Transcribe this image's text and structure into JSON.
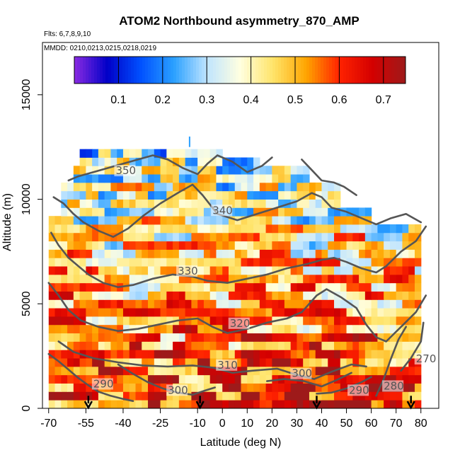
{
  "chart_data": {
    "type": "heatmap",
    "title": "ATOM2 Northbound asymmetry_870_AMP",
    "flights_note": "Flts: 6,7,8,9,10",
    "dates_note": "MMDD: 0210,0213,0215,0218,0219",
    "xlabel": "Latitude (deg N)",
    "ylabel": "Altitude (m)",
    "xlim": [
      -70,
      85
    ],
    "ylim": [
      0,
      17500
    ],
    "x_ticks": [
      -70,
      -55,
      -40,
      -25,
      -10,
      0,
      10,
      20,
      30,
      40,
      50,
      60,
      70,
      80
    ],
    "y_ticks": [
      0,
      5000,
      10000,
      15000
    ],
    "colorbar": {
      "range": [
        0,
        0.75
      ],
      "ticks": [
        0.1,
        0.2,
        0.3,
        0.4,
        0.5,
        0.6,
        0.7
      ],
      "colors": [
        "#8a2be2",
        "#0000c8",
        "#0050ff",
        "#2aa0ff",
        "#bfe4ff",
        "#ffffe0",
        "#ffe46a",
        "#ffa500",
        "#ff2200",
        "#d40000",
        "#9e1a1a"
      ]
    },
    "profile_markers_lat": [
      -54,
      -9,
      38,
      76
    ],
    "contours": [
      {
        "level": 290,
        "label": "290",
        "label_pos": [
          -52,
          1000
        ],
        "points": [
          [
            -70,
            2600
          ],
          [
            -66,
            2250
          ],
          [
            -62,
            1850
          ],
          [
            -58,
            1450
          ],
          [
            -54,
            1100
          ],
          [
            -50,
            800
          ],
          [
            -45,
            600
          ],
          [
            -40,
            450
          ],
          [
            -36,
            350
          ]
        ]
      },
      {
        "level": 300,
        "label": "300",
        "label_pos": [
          -22,
          700
        ],
        "points": [
          [
            -42,
            2100
          ],
          [
            -36,
            1650
          ],
          [
            -30,
            1250
          ],
          [
            -24,
            950
          ],
          [
            -18,
            750
          ],
          [
            -12,
            650
          ],
          [
            -7,
            850
          ],
          [
            -3,
            1000
          ]
        ]
      },
      {
        "level": 290,
        "label": "290",
        "label_pos": [
          51,
          700
        ],
        "points": [
          [
            38,
            700
          ],
          [
            44,
            750
          ],
          [
            50,
            950
          ],
          [
            56,
            1250
          ],
          [
            60,
            1500
          ]
        ]
      },
      {
        "level": 280,
        "label": "280",
        "label_pos": [
          65,
          900
        ],
        "points": [
          [
            62,
            600
          ],
          [
            65,
            1400
          ],
          [
            68,
            2400
          ],
          [
            71,
            3300
          ],
          [
            74,
            3900
          ]
        ]
      },
      {
        "level": 270,
        "label": "270",
        "label_pos": [
          78,
          2200
        ],
        "points": [
          [
            72,
            1800
          ],
          [
            76,
            2400
          ],
          [
            80,
            3200
          ],
          [
            81,
            4100
          ]
        ]
      },
      {
        "level": 310,
        "label": "310",
        "label_pos": [
          -2,
          1900
        ],
        "points": [
          [
            -66,
            3200
          ],
          [
            -60,
            2700
          ],
          [
            -52,
            2400
          ],
          [
            -42,
            2200
          ],
          [
            -32,
            2050
          ],
          [
            -22,
            2000
          ],
          [
            -12,
            2050
          ],
          [
            -4,
            1950
          ],
          [
            4,
            1700
          ],
          [
            12,
            1800
          ],
          [
            22,
            1900
          ],
          [
            30,
            1600
          ],
          [
            37,
            1400
          ],
          [
            44,
            1750
          ],
          [
            52,
            2100
          ],
          [
            58,
            2000
          ]
        ]
      },
      {
        "level": 300,
        "label": "300",
        "label_pos": [
          28,
          1500
        ],
        "points": [
          [
            18,
            1300
          ],
          [
            25,
            1400
          ],
          [
            33,
            1300
          ],
          [
            40,
            1050
          ],
          [
            46,
            1350
          ],
          [
            52,
            1700
          ]
        ]
      },
      {
        "level": 320,
        "label": "320",
        "label_pos": [
          3,
          3900
        ],
        "points": [
          [
            -70,
            6000
          ],
          [
            -66,
            5400
          ],
          [
            -62,
            4700
          ],
          [
            -57,
            4200
          ],
          [
            -50,
            3900
          ],
          [
            -42,
            3700
          ],
          [
            -34,
            3800
          ],
          [
            -26,
            4000
          ],
          [
            -18,
            4200
          ],
          [
            -10,
            4300
          ],
          [
            -4,
            3900
          ],
          [
            2,
            3600
          ],
          [
            10,
            3800
          ],
          [
            18,
            4100
          ],
          [
            26,
            4300
          ],
          [
            32,
            4600
          ],
          [
            38,
            5400
          ],
          [
            42,
            5700
          ],
          [
            48,
            5300
          ],
          [
            54,
            4800
          ],
          [
            58,
            4000
          ],
          [
            62,
            3400
          ],
          [
            66,
            3200
          ],
          [
            72,
            3900
          ],
          [
            78,
            4600
          ],
          [
            82,
            5400
          ]
        ]
      },
      {
        "level": 330,
        "label": "330",
        "label_pos": [
          -18,
          6400
        ],
        "points": [
          [
            -69,
            8400
          ],
          [
            -66,
            7800
          ],
          [
            -62,
            7200
          ],
          [
            -58,
            6800
          ],
          [
            -54,
            6400
          ],
          [
            -48,
            6000
          ],
          [
            -42,
            5800
          ],
          [
            -36,
            5900
          ],
          [
            -28,
            6200
          ],
          [
            -20,
            6400
          ],
          [
            -12,
            6300
          ],
          [
            -6,
            6100
          ],
          [
            2,
            6000
          ],
          [
            10,
            6200
          ],
          [
            18,
            6400
          ],
          [
            26,
            6700
          ],
          [
            34,
            6900
          ],
          [
            40,
            7100
          ],
          [
            45,
            7200
          ],
          [
            50,
            7000
          ],
          [
            56,
            6700
          ],
          [
            62,
            6500
          ],
          [
            66,
            6800
          ],
          [
            72,
            7500
          ],
          [
            78,
            8000
          ],
          [
            82,
            8700
          ]
        ]
      },
      {
        "level": 340,
        "label": "340",
        "label_pos": [
          -4,
          9300
        ],
        "points": [
          [
            -68,
            10100
          ],
          [
            -64,
            9800
          ],
          [
            -60,
            9300
          ],
          [
            -56,
            8900
          ],
          [
            -50,
            8500
          ],
          [
            -44,
            8200
          ],
          [
            -38,
            8600
          ],
          [
            -32,
            9200
          ],
          [
            -25,
            9800
          ],
          [
            -18,
            10300
          ],
          [
            -12,
            10700
          ],
          [
            -8,
            10200
          ],
          [
            -2,
            9300
          ],
          [
            6,
            9000
          ],
          [
            14,
            9300
          ],
          [
            22,
            9600
          ],
          [
            30,
            9900
          ],
          [
            36,
            10300
          ],
          [
            40,
            10100
          ],
          [
            44,
            9600
          ],
          [
            50,
            9400
          ],
          [
            56,
            9100
          ],
          [
            62,
            8800
          ],
          [
            68,
            9100
          ],
          [
            74,
            9300
          ],
          [
            80,
            8900
          ]
        ]
      },
      {
        "level": 350,
        "label": "350",
        "label_pos": [
          -43,
          11200
        ],
        "points": [
          [
            -62,
            10900
          ],
          [
            -58,
            11100
          ],
          [
            -52,
            11300
          ],
          [
            -46,
            11500
          ],
          [
            -40,
            11700
          ],
          [
            -34,
            11900
          ],
          [
            -28,
            12100
          ],
          [
            -22,
            11900
          ],
          [
            -16,
            11500
          ],
          [
            -10,
            11200
          ],
          [
            -6,
            11700
          ],
          [
            -2,
            12100
          ],
          [
            4,
            11800
          ],
          [
            10,
            11300
          ],
          [
            16,
            11600
          ],
          [
            20,
            12000
          ]
        ]
      },
      {
        "level": 350,
        "label": "",
        "label_pos": [
          0,
          0
        ],
        "points": [
          [
            32,
            11900
          ],
          [
            36,
            11400
          ],
          [
            40,
            10900
          ],
          [
            45,
            10800
          ],
          [
            49,
            10600
          ],
          [
            54,
            10200
          ]
        ]
      }
    ]
  }
}
